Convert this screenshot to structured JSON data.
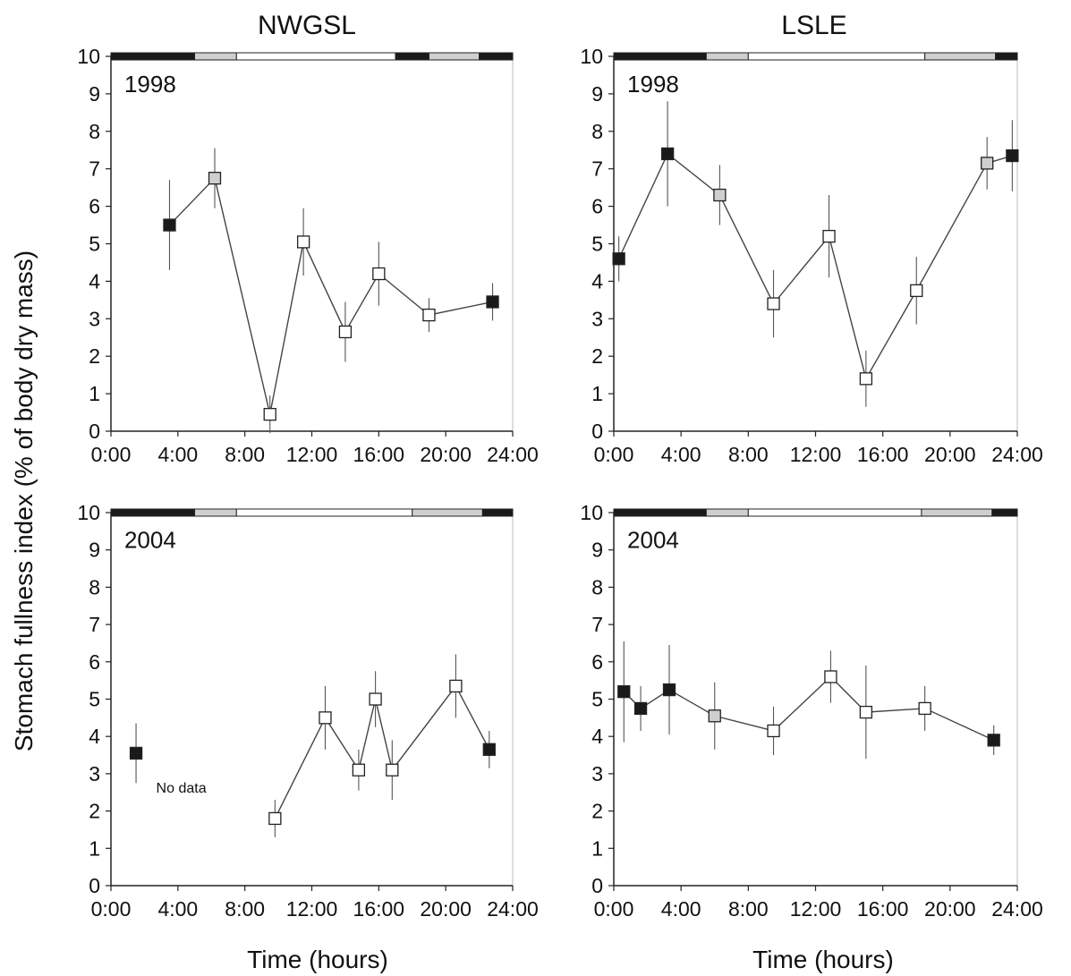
{
  "figure": {
    "column_titles": [
      "NWGSL",
      "LSLE"
    ],
    "ylabel": "Stomach fullness index (% of body dry mass)",
    "xlabel": "Time (hours)",
    "no_data_label": "No data"
  },
  "colors": {
    "day_open": "#ffffff",
    "night_filled": "#1a1a1a",
    "twilight_gray": "#cfcfcf",
    "line": "#444444"
  },
  "chart_data": [
    {
      "type": "line",
      "region": "NWGSL",
      "year": "1998",
      "xlim": [
        0,
        24
      ],
      "ylim": [
        0,
        10
      ],
      "xticks": [
        "0:00",
        "4:00",
        "8:00",
        "12:00",
        "16:00",
        "20:00",
        "24:00"
      ],
      "yticks": [
        "0",
        "1",
        "2",
        "3",
        "4",
        "5",
        "6",
        "7",
        "8",
        "9",
        "10"
      ],
      "light_bar": [
        {
          "from": 0,
          "to": 5,
          "phase": "night"
        },
        {
          "from": 5,
          "to": 7.5,
          "phase": "twilight"
        },
        {
          "from": 7.5,
          "to": 17,
          "phase": "day"
        },
        {
          "from": 17,
          "to": 19,
          "phase": "night"
        },
        {
          "from": 19,
          "to": 22,
          "phase": "twilight"
        },
        {
          "from": 22,
          "to": 24,
          "phase": "night"
        }
      ],
      "points": [
        {
          "x": 3.5,
          "y": 5.5,
          "err": 1.2,
          "fill": "night"
        },
        {
          "x": 6.2,
          "y": 6.75,
          "err": 0.8,
          "fill": "twilight"
        },
        {
          "x": 9.5,
          "y": 0.45,
          "err": 0.5,
          "fill": "day"
        },
        {
          "x": 11.5,
          "y": 5.05,
          "err": 0.9,
          "fill": "day"
        },
        {
          "x": 14.0,
          "y": 2.65,
          "err": 0.8,
          "fill": "day"
        },
        {
          "x": 16.0,
          "y": 4.2,
          "err": 0.85,
          "fill": "day"
        },
        {
          "x": 19.0,
          "y": 3.1,
          "err": 0.45,
          "fill": "day"
        },
        {
          "x": 22.8,
          "y": 3.45,
          "err": 0.5,
          "fill": "night"
        }
      ]
    },
    {
      "type": "line",
      "region": "LSLE",
      "year": "1998",
      "xlim": [
        0,
        24
      ],
      "ylim": [
        0,
        10
      ],
      "xticks": [
        "0:00",
        "4:00",
        "8:00",
        "12:00",
        "16:00",
        "20:00",
        "24:00"
      ],
      "yticks": [
        "0",
        "1",
        "2",
        "3",
        "4",
        "5",
        "6",
        "7",
        "8",
        "9",
        "10"
      ],
      "light_bar": [
        {
          "from": 0,
          "to": 5.5,
          "phase": "night"
        },
        {
          "from": 5.5,
          "to": 8,
          "phase": "twilight"
        },
        {
          "from": 8,
          "to": 18.5,
          "phase": "day"
        },
        {
          "from": 18.5,
          "to": 22.7,
          "phase": "twilight"
        },
        {
          "from": 22.7,
          "to": 24,
          "phase": "night"
        }
      ],
      "points": [
        {
          "x": 0.3,
          "y": 4.6,
          "err": 0.6,
          "fill": "night"
        },
        {
          "x": 3.2,
          "y": 7.4,
          "err": 1.4,
          "fill": "night"
        },
        {
          "x": 6.3,
          "y": 6.3,
          "err": 0.8,
          "fill": "twilight"
        },
        {
          "x": 9.5,
          "y": 3.4,
          "err": 0.9,
          "fill": "day"
        },
        {
          "x": 12.8,
          "y": 5.2,
          "err": 1.1,
          "fill": "day"
        },
        {
          "x": 15.0,
          "y": 1.4,
          "err": 0.75,
          "fill": "day"
        },
        {
          "x": 18.0,
          "y": 3.75,
          "err": 0.9,
          "fill": "day"
        },
        {
          "x": 22.2,
          "y": 7.15,
          "err": 0.7,
          "fill": "twilight"
        },
        {
          "x": 23.7,
          "y": 7.35,
          "err": 0.95,
          "fill": "night"
        }
      ]
    },
    {
      "type": "line",
      "region": "NWGSL",
      "year": "2004",
      "xlim": [
        0,
        24
      ],
      "ylim": [
        0,
        10
      ],
      "xticks": [
        "0:00",
        "4:00",
        "8:00",
        "12:00",
        "16:00",
        "20:00",
        "24:00"
      ],
      "yticks": [
        "0",
        "1",
        "2",
        "3",
        "4",
        "5",
        "6",
        "7",
        "8",
        "9",
        "10"
      ],
      "no_data": {
        "x": 4.2,
        "y": 2.5
      },
      "light_bar": [
        {
          "from": 0,
          "to": 5,
          "phase": "night"
        },
        {
          "from": 5,
          "to": 7.5,
          "phase": "twilight"
        },
        {
          "from": 7.5,
          "to": 18,
          "phase": "day"
        },
        {
          "from": 18,
          "to": 22.2,
          "phase": "twilight"
        },
        {
          "from": 22.2,
          "to": 24,
          "phase": "night"
        }
      ],
      "points": [
        {
          "x": 1.5,
          "y": 3.55,
          "err": 0.8,
          "fill": "night",
          "connected": false
        },
        {
          "x": 9.8,
          "y": 1.8,
          "err": 0.5,
          "fill": "day"
        },
        {
          "x": 12.8,
          "y": 4.5,
          "err": 0.85,
          "fill": "day"
        },
        {
          "x": 14.8,
          "y": 3.1,
          "err": 0.55,
          "fill": "day"
        },
        {
          "x": 15.8,
          "y": 5.0,
          "err": 0.75,
          "fill": "day"
        },
        {
          "x": 16.8,
          "y": 3.1,
          "err": 0.8,
          "fill": "day"
        },
        {
          "x": 20.6,
          "y": 5.35,
          "err": 0.85,
          "fill": "day"
        },
        {
          "x": 22.6,
          "y": 3.65,
          "err": 0.5,
          "fill": "night"
        }
      ]
    },
    {
      "type": "line",
      "region": "LSLE",
      "year": "2004",
      "xlim": [
        0,
        24
      ],
      "ylim": [
        0,
        10
      ],
      "xticks": [
        "0:00",
        "4:00",
        "8:00",
        "12:00",
        "16:00",
        "20:00",
        "24:00"
      ],
      "yticks": [
        "0",
        "1",
        "2",
        "3",
        "4",
        "5",
        "6",
        "7",
        "8",
        "9",
        "10"
      ],
      "light_bar": [
        {
          "from": 0,
          "to": 5.5,
          "phase": "night"
        },
        {
          "from": 5.5,
          "to": 8,
          "phase": "twilight"
        },
        {
          "from": 8,
          "to": 18.3,
          "phase": "day"
        },
        {
          "from": 18.3,
          "to": 22.5,
          "phase": "twilight"
        },
        {
          "from": 22.5,
          "to": 24,
          "phase": "night"
        }
      ],
      "points": [
        {
          "x": 0.6,
          "y": 5.2,
          "err": 1.35,
          "fill": "night"
        },
        {
          "x": 1.6,
          "y": 4.75,
          "err": 0.6,
          "fill": "night"
        },
        {
          "x": 3.3,
          "y": 5.25,
          "err": 1.2,
          "fill": "night"
        },
        {
          "x": 6.0,
          "y": 4.55,
          "err": 0.9,
          "fill": "twilight"
        },
        {
          "x": 9.5,
          "y": 4.15,
          "err": 0.65,
          "fill": "day"
        },
        {
          "x": 12.9,
          "y": 5.6,
          "err": 0.7,
          "fill": "day"
        },
        {
          "x": 15.0,
          "y": 4.65,
          "err": 1.25,
          "fill": "day"
        },
        {
          "x": 18.5,
          "y": 4.75,
          "err": 0.6,
          "fill": "day"
        },
        {
          "x": 22.6,
          "y": 3.9,
          "err": 0.4,
          "fill": "night"
        }
      ]
    }
  ]
}
